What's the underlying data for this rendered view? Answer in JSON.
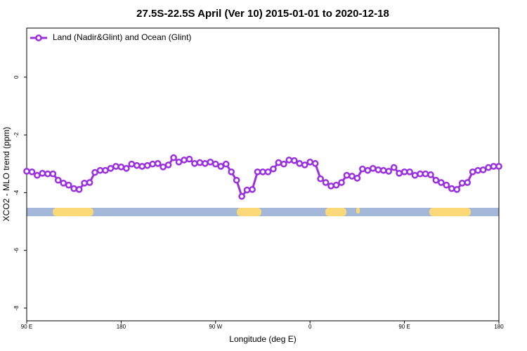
{
  "chart_data": {
    "type": "line",
    "title": "27.5S-22.5S April (Ver 10)   2015-01-01 to 2020-12-18",
    "xlabel": "Longitude (deg E)",
    "ylabel": "XCO2 - MLO trend (ppm)",
    "x": [
      90,
      95,
      100,
      105,
      110,
      115,
      120,
      125,
      130,
      135,
      140,
      145,
      150,
      155,
      160,
      165,
      170,
      175,
      180,
      185,
      190,
      195,
      200,
      205,
      210,
      215,
      220,
      225,
      230,
      235,
      240,
      245,
      250,
      255,
      260,
      265,
      270,
      275,
      280,
      285,
      290,
      295,
      300,
      305,
      310,
      315,
      320,
      325,
      330,
      335,
      340,
      345,
      350,
      355,
      360,
      365,
      370,
      375,
      380,
      385,
      390,
      395,
      400,
      405,
      410,
      415,
      420,
      425,
      430,
      435,
      440,
      445,
      450,
      455,
      460,
      465,
      470,
      475,
      480,
      485,
      490,
      495,
      500,
      505,
      510,
      515,
      520,
      525,
      530,
      535,
      540
    ],
    "series": [
      {
        "name": "Land (Nadir&Glint) and Ocean (Glint)",
        "color": "#9b30e0",
        "values": [
          -3.26,
          -3.28,
          -3.4,
          -3.33,
          -3.35,
          -3.35,
          -3.57,
          -3.67,
          -3.74,
          -3.86,
          -3.89,
          -3.67,
          -3.65,
          -3.3,
          -3.23,
          -3.23,
          -3.16,
          -3.09,
          -3.11,
          -3.16,
          -3.01,
          -3.06,
          -3.09,
          -3.06,
          -3.01,
          -2.99,
          -3.11,
          -3.04,
          -2.79,
          -2.94,
          -2.87,
          -2.84,
          -2.99,
          -2.96,
          -2.99,
          -2.94,
          -3.01,
          -3.09,
          -3.01,
          -3.28,
          -3.57,
          -4.13,
          -3.91,
          -3.89,
          -3.28,
          -3.28,
          -3.28,
          -3.18,
          -2.96,
          -3.01,
          -2.87,
          -2.89,
          -2.99,
          -3.04,
          -2.94,
          -2.99,
          -3.52,
          -3.65,
          -3.77,
          -3.74,
          -3.65,
          -3.4,
          -3.43,
          -3.5,
          -3.18,
          -3.23,
          -3.16,
          -3.21,
          -3.23,
          -3.26,
          -3.13,
          -3.33,
          -3.28,
          -3.28,
          -3.4,
          -3.35,
          -3.35,
          -3.38,
          -3.57,
          -3.65,
          -3.74,
          -3.86,
          -3.89,
          -3.67,
          -3.65,
          -3.28,
          -3.23,
          -3.21,
          -3.13,
          -3.09,
          -3.09
        ]
      }
    ],
    "xlim": [
      90,
      540
    ],
    "xticks": [
      {
        "value": 90,
        "label": "90 E"
      },
      180,
      {
        "value": 270,
        "label": "90 W"
      },
      {
        "value": 360,
        "label": "0"
      },
      {
        "value": 450,
        "label": "90 E"
      },
      {
        "value": 540,
        "label": "180"
      }
    ],
    "ylim": [
      -8.44,
      1.7
    ],
    "yticks": [
      0,
      -2,
      -4,
      -6,
      -8
    ],
    "legend": "top-left"
  }
}
